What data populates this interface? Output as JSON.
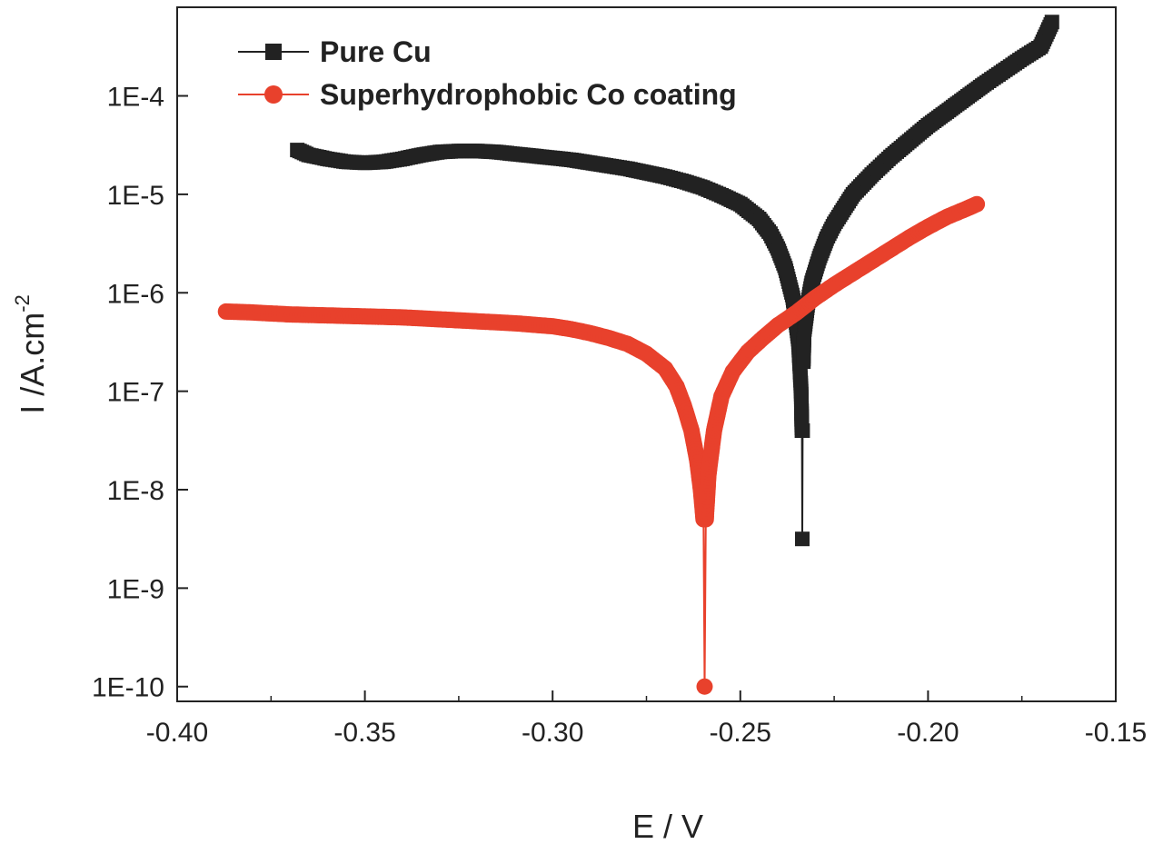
{
  "chart_data": {
    "type": "line",
    "title": "",
    "xlabel": "E / V",
    "ylabel": "I /A.cm",
    "ylabel_superscript": "-2",
    "xlim": [
      -0.4,
      -0.15
    ],
    "ylim_log10": [
      -10.15,
      -3.1
    ],
    "yscale": "log",
    "x_ticks": [
      -0.4,
      -0.35,
      -0.3,
      -0.25,
      -0.2,
      -0.15
    ],
    "x_tick_labels": [
      "-0.40",
      "-0.35",
      "-0.30",
      "-0.25",
      "-0.20",
      "-0.15"
    ],
    "y_ticks_log10": [
      -10,
      -9,
      -8,
      -7,
      -6,
      -5,
      -4
    ],
    "y_tick_labels": [
      "1E-10",
      "1E-9",
      "1E-8",
      "1E-7",
      "1E-6",
      "1E-5",
      "1E-4"
    ],
    "legend_position": "top-left",
    "series": [
      {
        "name": "Pure Cu",
        "color": "#222222",
        "marker": "square",
        "points": [
          [
            -0.368,
            -4.55
          ],
          [
            -0.365,
            -4.6
          ],
          [
            -0.36,
            -4.64
          ],
          [
            -0.355,
            -4.67
          ],
          [
            -0.35,
            -4.68
          ],
          [
            -0.345,
            -4.67
          ],
          [
            -0.34,
            -4.64
          ],
          [
            -0.335,
            -4.6
          ],
          [
            -0.33,
            -4.57
          ],
          [
            -0.325,
            -4.56
          ],
          [
            -0.32,
            -4.56
          ],
          [
            -0.315,
            -4.57
          ],
          [
            -0.31,
            -4.59
          ],
          [
            -0.305,
            -4.61
          ],
          [
            -0.3,
            -4.63
          ],
          [
            -0.295,
            -4.65
          ],
          [
            -0.29,
            -4.68
          ],
          [
            -0.285,
            -4.71
          ],
          [
            -0.28,
            -4.74
          ],
          [
            -0.275,
            -4.78
          ],
          [
            -0.27,
            -4.82
          ],
          [
            -0.265,
            -4.87
          ],
          [
            -0.26,
            -4.93
          ],
          [
            -0.255,
            -5.01
          ],
          [
            -0.25,
            -5.1
          ],
          [
            -0.245,
            -5.25
          ],
          [
            -0.242,
            -5.4
          ],
          [
            -0.24,
            -5.55
          ],
          [
            -0.238,
            -5.75
          ],
          [
            -0.236,
            -6.05
          ],
          [
            -0.2345,
            -6.5
          ],
          [
            -0.2338,
            -7.0
          ],
          [
            -0.2336,
            -7.4
          ],
          [
            -0.2335,
            -8.5
          ],
          [
            -0.2334,
            -7.4
          ],
          [
            -0.2332,
            -6.7
          ],
          [
            -0.233,
            -6.4
          ],
          [
            -0.232,
            -6.1
          ],
          [
            -0.231,
            -5.9
          ],
          [
            -0.229,
            -5.65
          ],
          [
            -0.227,
            -5.45
          ],
          [
            -0.225,
            -5.3
          ],
          [
            -0.22,
            -5.0
          ],
          [
            -0.215,
            -4.8
          ],
          [
            -0.21,
            -4.62
          ],
          [
            -0.205,
            -4.46
          ],
          [
            -0.2,
            -4.3
          ],
          [
            -0.195,
            -4.16
          ],
          [
            -0.19,
            -4.02
          ],
          [
            -0.185,
            -3.88
          ],
          [
            -0.18,
            -3.75
          ],
          [
            -0.175,
            -3.62
          ],
          [
            -0.17,
            -3.5
          ],
          [
            -0.167,
            -3.25
          ]
        ]
      },
      {
        "name": "Superhydrophobic Co coating",
        "color": "#e8412c",
        "marker": "circle",
        "points": [
          [
            -0.387,
            -6.19
          ],
          [
            -0.38,
            -6.2
          ],
          [
            -0.37,
            -6.22
          ],
          [
            -0.36,
            -6.23
          ],
          [
            -0.35,
            -6.24
          ],
          [
            -0.34,
            -6.25
          ],
          [
            -0.33,
            -6.27
          ],
          [
            -0.32,
            -6.29
          ],
          [
            -0.31,
            -6.31
          ],
          [
            -0.3,
            -6.34
          ],
          [
            -0.295,
            -6.37
          ],
          [
            -0.29,
            -6.41
          ],
          [
            -0.285,
            -6.46
          ],
          [
            -0.28,
            -6.52
          ],
          [
            -0.275,
            -6.62
          ],
          [
            -0.27,
            -6.77
          ],
          [
            -0.267,
            -6.95
          ],
          [
            -0.265,
            -7.15
          ],
          [
            -0.263,
            -7.4
          ],
          [
            -0.2615,
            -7.7
          ],
          [
            -0.2605,
            -8.0
          ],
          [
            -0.2598,
            -8.3
          ],
          [
            -0.2595,
            -10.0
          ],
          [
            -0.2592,
            -8.3
          ],
          [
            -0.2585,
            -7.85
          ],
          [
            -0.257,
            -7.4
          ],
          [
            -0.255,
            -7.05
          ],
          [
            -0.252,
            -6.8
          ],
          [
            -0.248,
            -6.6
          ],
          [
            -0.244,
            -6.46
          ],
          [
            -0.24,
            -6.33
          ],
          [
            -0.235,
            -6.2
          ],
          [
            -0.23,
            -6.05
          ],
          [
            -0.225,
            -5.92
          ],
          [
            -0.22,
            -5.8
          ],
          [
            -0.215,
            -5.68
          ],
          [
            -0.21,
            -5.56
          ],
          [
            -0.205,
            -5.44
          ],
          [
            -0.2,
            -5.33
          ],
          [
            -0.195,
            -5.23
          ],
          [
            -0.19,
            -5.15
          ],
          [
            -0.187,
            -5.1
          ]
        ]
      }
    ]
  }
}
